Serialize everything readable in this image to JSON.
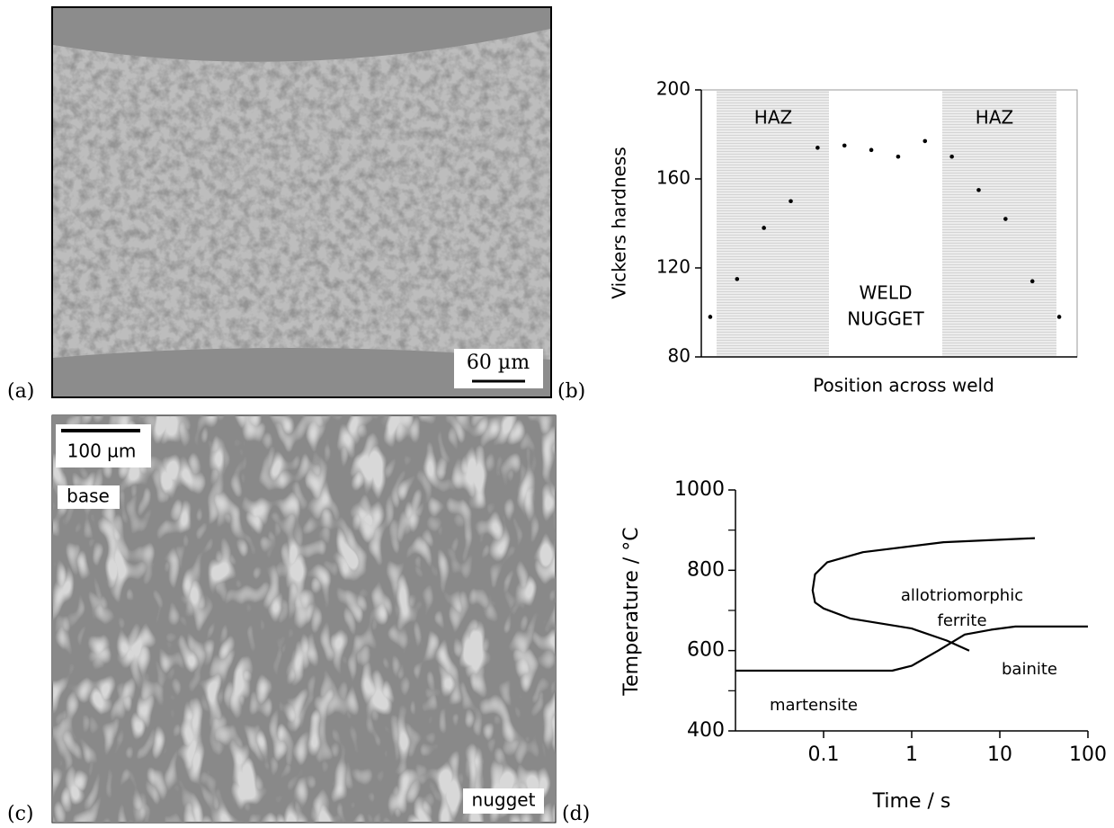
{
  "panel_labels": [
    "(a)",
    "(b)",
    "(c)",
    "(d)"
  ],
  "micrograph_a": {
    "scale_bar": "60 µm"
  },
  "micrograph_c": {
    "scale_bar": "100 µm",
    "labels": [
      "base",
      "nugget"
    ]
  },
  "chart_data": [
    {
      "type": "scatter",
      "xlabel": "Position across weld",
      "ylabel": "Vickers hardness",
      "categories": [
        null,
        null,
        null,
        null,
        null,
        null,
        null,
        null,
        null,
        null,
        null,
        null,
        null,
        null
      ],
      "values": [
        98,
        115,
        138,
        150,
        174,
        175,
        173,
        170,
        177,
        170,
        155,
        142,
        114,
        98
      ],
      "color": "#000000",
      "ylim": [
        80,
        200
      ],
      "yticks": [
        80,
        120,
        160,
        200
      ],
      "annotations": [
        "HAZ",
        "HAZ",
        "WELD",
        "NUGGET"
      ]
    },
    {
      "type": "line",
      "xlabel": "Time / s",
      "ylabel": "Temperature / °C",
      "xscale": "log",
      "xlim": [
        0.01,
        100
      ],
      "xticks": [
        0.1,
        1,
        10,
        100
      ],
      "ylim": [
        400,
        1000
      ],
      "yticks": [
        400,
        600,
        800,
        1000
      ],
      "yminor": [
        500,
        700,
        900
      ],
      "series": [
        {
          "color": "#000000",
          "x": [
            25,
            2.3,
            0.28,
            0.11,
            0.08,
            0.075,
            0.08,
            0.1,
            0.2,
            1,
            2.5,
            4.5
          ],
          "values": [
            880,
            870,
            845,
            820,
            790,
            750,
            720,
            705,
            680,
            655,
            625,
            600
          ]
        },
        {
          "color": "#000000",
          "x": [
            0.01,
            0.6,
            1,
            2,
            4,
            8,
            15,
            100
          ],
          "values": [
            550,
            550,
            562,
            600,
            640,
            652,
            660,
            660
          ]
        }
      ],
      "annotations": [
        "allotriomorphic",
        "ferrite",
        "bainite",
        "martensite"
      ]
    }
  ]
}
